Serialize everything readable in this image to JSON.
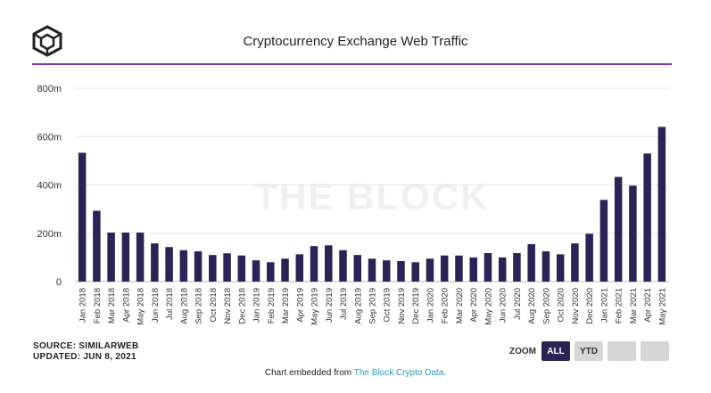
{
  "header": {
    "title": "Cryptocurrency Exchange Web Traffic"
  },
  "watermark": "THE BLOCK",
  "footer": {
    "source": "SOURCE: SIMILARWEB",
    "updated": "UPDATED: JUN 8, 2021",
    "embed_prefix": "Chart embedded from ",
    "embed_link": "The Block Crypto Data",
    "embed_suffix": "."
  },
  "zoom": {
    "label": "ZOOM",
    "buttons": [
      "ALL",
      "YTD",
      "",
      ""
    ],
    "active": "ALL"
  },
  "colors": {
    "bar": "#2c2253",
    "accent_rule": "#8a2fb0",
    "link": "#2a9bb7"
  },
  "chart_data": {
    "type": "bar",
    "title": "Cryptocurrency Exchange Web Traffic",
    "xlabel": "",
    "ylabel": "",
    "ylim": [
      0,
      800
    ],
    "yticks": [
      0,
      200,
      400,
      600,
      800
    ],
    "ytick_labels": [
      "0",
      "200m",
      "400m",
      "600m",
      "800m"
    ],
    "grid": true,
    "legend": "none",
    "categories": [
      "Jan 2018",
      "Feb 2018",
      "Mar 2018",
      "Apr 2018",
      "May 2018",
      "Jun 2018",
      "Jul 2018",
      "Aug 2018",
      "Sep 2018",
      "Oct 2018",
      "Nov 2018",
      "Dec 2018",
      "Jan 2019",
      "Feb 2019",
      "Mar 2019",
      "Apr 2019",
      "May 2019",
      "Jun 2019",
      "Jul 2019",
      "Aug 2019",
      "Sep 2019",
      "Oct 2019",
      "Nov 2019",
      "Dec 2019",
      "Jan 2020",
      "Feb 2020",
      "Mar 2020",
      "Apr 2020",
      "May 2020",
      "Jun 2020",
      "Jul 2020",
      "Aug 2020",
      "Sep 2020",
      "Oct 2020",
      "Nov 2020",
      "Dec 2020",
      "Jan 2021",
      "Feb 2021",
      "Mar 2021",
      "Apr 2021",
      "May 2021"
    ],
    "values": [
      533,
      293,
      203,
      203,
      203,
      158,
      143,
      130,
      125,
      110,
      117,
      108,
      88,
      80,
      95,
      113,
      147,
      150,
      130,
      110,
      95,
      88,
      85,
      80,
      95,
      108,
      108,
      100,
      118,
      100,
      118,
      155,
      125,
      113,
      158,
      198,
      338,
      433,
      397,
      530,
      640
    ]
  }
}
